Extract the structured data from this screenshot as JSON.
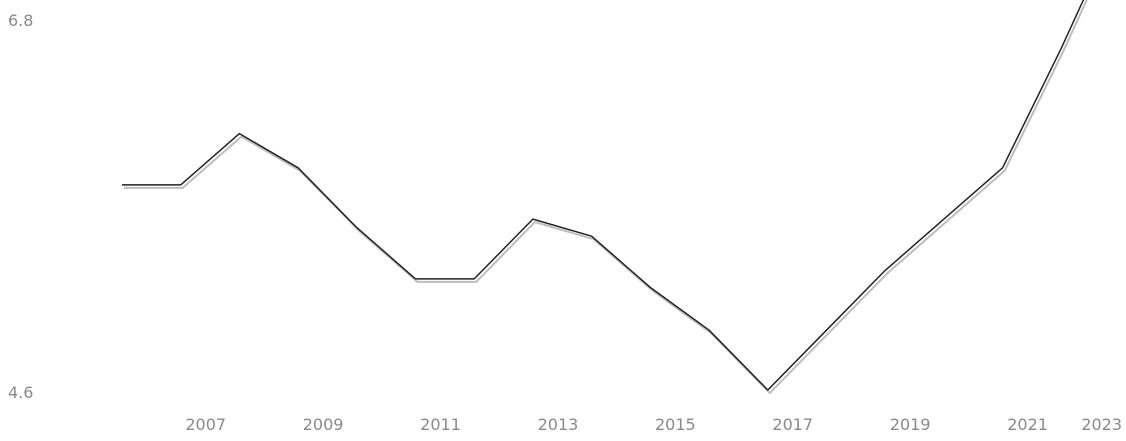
{
  "chart_data": {
    "type": "line",
    "x": [
      2006,
      2007,
      2008,
      2009,
      2010,
      2011,
      2012,
      2013,
      2014,
      2015,
      2016,
      2017,
      2018,
      2019,
      2020,
      2021,
      2022,
      2023
    ],
    "series": [
      {
        "values": [
          5.8,
          5.8,
          6.1,
          5.9,
          5.55,
          5.25,
          5.25,
          5.6,
          5.5,
          5.2,
          4.95,
          4.6,
          4.95,
          5.3,
          5.6,
          5.9,
          6.6,
          7.35
        ]
      }
    ],
    "x_tick_labels": [
      "2007",
      "2009",
      "2011",
      "2013",
      "2015",
      "2017",
      "2019",
      "2021",
      "2023"
    ],
    "y_axis_labels": {
      "max": "6.8",
      "min": "4.6"
    },
    "title": "",
    "xlabel": "",
    "ylabel": "",
    "ylim": [
      4.6,
      6.8
    ],
    "grid": false,
    "line_color": "#222222",
    "shadow_color": "#bdbdbd"
  }
}
